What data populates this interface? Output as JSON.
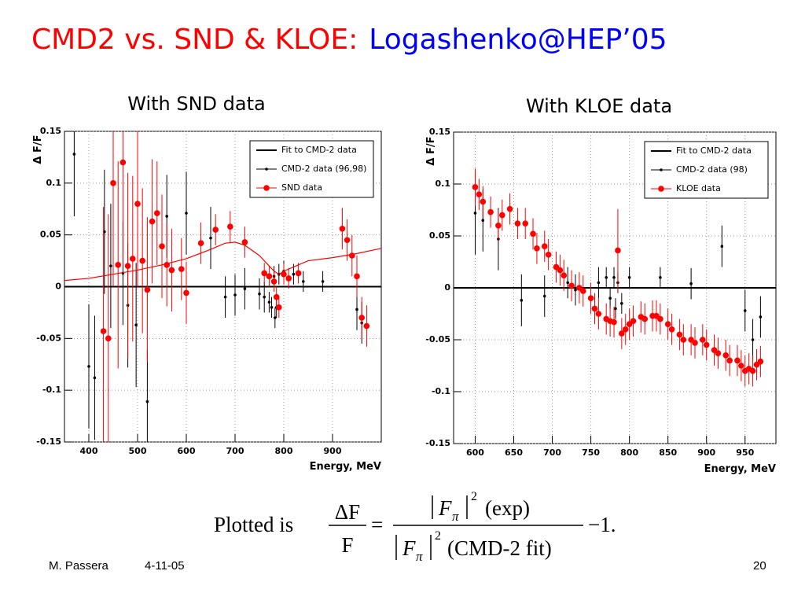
{
  "title": {
    "main": "CMD2 vs. SND & KLOE:",
    "source": "Logashenko@HEP’05"
  },
  "formula": {
    "lead": "Plotted is",
    "delta_f": "ΔF",
    "f": "F",
    "equals": "=",
    "pi": "π",
    "power": "2",
    "num_tail": "(exp)",
    "den_tail": "(CMD-2 fit)",
    "tail": "−1."
  },
  "footer": {
    "author": "M. Passera",
    "date": "4-11-05",
    "page": "20"
  },
  "chart_data": [
    {
      "type": "scatter",
      "subtitle": "With SND data",
      "xlabel": "Energy, MeV",
      "ylabel": "Δ F/F",
      "xlim": [
        350,
        1000
      ],
      "xticks": [
        400,
        500,
        600,
        700,
        800,
        900
      ],
      "ylim": [
        -0.15,
        0.15
      ],
      "yticks": [
        0.15,
        0.1,
        0.05,
        0,
        -0.05,
        -0.1,
        -0.15
      ],
      "grid": true,
      "legend": "upper right",
      "series": [
        {
          "name": "Fit to CMD-2 data",
          "style": "line",
          "color": "#000000",
          "x": [
            350,
            1000
          ],
          "values": [
            0,
            0
          ]
        },
        {
          "name": "CMD-2 data (96,98)",
          "style": "markers",
          "marker": "dot",
          "color": "#000000",
          "x": [
            370,
            400,
            412,
            432,
            445,
            470,
            480,
            497,
            520,
            560,
            600,
            650,
            680,
            700,
            720,
            750,
            760,
            770,
            775,
            780,
            782,
            785,
            790,
            800,
            820,
            840,
            880,
            950,
            960
          ],
          "values": [
            0.128,
            -0.077,
            -0.088,
            0.053,
            0.02,
            0.013,
            -0.018,
            -0.037,
            -0.111,
            0.068,
            0.071,
            0.047,
            -0.01,
            -0.008,
            -0.002,
            -0.007,
            -0.01,
            -0.015,
            -0.02,
            0.01,
            -0.03,
            -0.02,
            0.012,
            0.015,
            0.012,
            0.005,
            0.005,
            -0.022,
            -0.035
          ],
          "errors": [
            0.06,
            0.06,
            0.06,
            0.06,
            0.06,
            0.05,
            0.06,
            0.06,
            0.05,
            0.04,
            0.04,
            0.03,
            0.02,
            0.02,
            0.02,
            0.015,
            0.015,
            0.01,
            0.01,
            0.01,
            0.01,
            0.01,
            0.01,
            0.01,
            0.01,
            0.01,
            0.01,
            0.02,
            0.02
          ]
        },
        {
          "name": "SND data",
          "style": "markers",
          "marker": "circle",
          "color": "#ff0000",
          "x": [
            430,
            440,
            450,
            460,
            470,
            480,
            490,
            500,
            510,
            520,
            530,
            540,
            550,
            560,
            570,
            590,
            600,
            630,
            660,
            690,
            720,
            760,
            770,
            780,
            785,
            790,
            800,
            810,
            830,
            920,
            930,
            940,
            950,
            960,
            970
          ],
          "values": [
            -0.043,
            -0.05,
            0.1,
            0.021,
            0.12,
            0.02,
            0.027,
            0.08,
            0.025,
            -0.003,
            0.063,
            0.071,
            0.039,
            0.021,
            0.016,
            0.017,
            -0.006,
            0.042,
            0.055,
            0.058,
            0.043,
            0.013,
            0.01,
            0.005,
            -0.01,
            -0.02,
            0.012,
            0.008,
            0.013,
            0.056,
            0.045,
            0.03,
            0.01,
            -0.03,
            -0.038
          ],
          "errors": [
            0.12,
            0.12,
            0.1,
            0.1,
            0.1,
            0.09,
            0.08,
            0.08,
            0.07,
            0.07,
            0.06,
            0.05,
            0.05,
            0.04,
            0.04,
            0.03,
            0.03,
            0.02,
            0.015,
            0.015,
            0.015,
            0.01,
            0.01,
            0.01,
            0.01,
            0.01,
            0.01,
            0.01,
            0.01,
            0.02,
            0.02,
            0.02,
            0.02,
            0.02,
            0.02
          ]
        },
        {
          "style": "line",
          "color": "#ff0000",
          "x": [
            350,
            400,
            450,
            500,
            550,
            600,
            650,
            680,
            700,
            720,
            750,
            780,
            790,
            800,
            850,
            900,
            950,
            1000
          ],
          "values": [
            0.006,
            0.008,
            0.012,
            0.016,
            0.021,
            0.027,
            0.036,
            0.042,
            0.043,
            0.04,
            0.03,
            0.015,
            0.012,
            0.015,
            0.025,
            0.028,
            0.032,
            0.037
          ]
        }
      ]
    },
    {
      "type": "scatter",
      "subtitle": "With KLOE data",
      "xlabel": "Energy, MeV",
      "ylabel": "Δ F/F",
      "xlim": [
        572,
        990
      ],
      "xticks": [
        600,
        650,
        700,
        750,
        800,
        850,
        900,
        950
      ],
      "ylim": [
        -0.15,
        0.15
      ],
      "yticks": [
        0.15,
        0.1,
        0.05,
        0,
        -0.05,
        -0.1,
        -0.15
      ],
      "grid": true,
      "legend": "upper right",
      "series": [
        {
          "name": "Fit to CMD-2 data",
          "style": "line",
          "color": "#000000",
          "x": [
            572,
            990
          ],
          "values": [
            0,
            0
          ]
        },
        {
          "name": "CMD-2 data (98)",
          "style": "markers",
          "marker": "dot",
          "color": "#000000",
          "x": [
            600,
            610,
            630,
            660,
            690,
            720,
            730,
            760,
            770,
            775,
            780,
            782,
            785,
            790,
            800,
            840,
            880,
            920,
            950,
            960,
            970
          ],
          "values": [
            0.072,
            0.065,
            0.047,
            -0.012,
            -0.008,
            0.005,
            -0.002,
            0.005,
            0.01,
            -0.01,
            0.01,
            -0.02,
            0.005,
            -0.015,
            0.01,
            0.01,
            0.004,
            0.04,
            -0.022,
            -0.05,
            -0.028
          ],
          "errors": [
            0.04,
            0.03,
            0.03,
            0.025,
            0.02,
            0.015,
            0.015,
            0.015,
            0.01,
            0.01,
            0.01,
            0.01,
            0.01,
            0.01,
            0.01,
            0.01,
            0.015,
            0.02,
            0.02,
            0.02,
            0.02
          ]
        },
        {
          "name": "KLOE data",
          "style": "markers",
          "marker": "circle",
          "color": "#ff0000",
          "x": [
            600,
            605,
            610,
            620,
            630,
            635,
            645,
            655,
            665,
            675,
            680,
            690,
            695,
            705,
            710,
            715,
            725,
            735,
            740,
            750,
            755,
            760,
            770,
            775,
            780,
            785,
            790,
            795,
            800,
            805,
            815,
            820,
            830,
            835,
            840,
            850,
            855,
            865,
            870,
            880,
            885,
            895,
            900,
            910,
            915,
            925,
            930,
            940,
            945,
            950,
            955,
            960,
            965,
            970
          ],
          "values": [
            0.097,
            0.09,
            0.083,
            0.073,
            0.06,
            0.07,
            0.076,
            0.062,
            0.062,
            0.052,
            0.038,
            0.04,
            0.032,
            0.02,
            0.017,
            0.012,
            0.002,
            0,
            -0.003,
            -0.01,
            -0.02,
            -0.025,
            -0.03,
            -0.032,
            -0.033,
            0.036,
            -0.044,
            -0.04,
            -0.035,
            -0.032,
            -0.028,
            -0.03,
            -0.027,
            -0.027,
            -0.03,
            -0.035,
            -0.04,
            -0.045,
            -0.05,
            -0.05,
            -0.053,
            -0.05,
            -0.055,
            -0.06,
            -0.063,
            -0.065,
            -0.07,
            -0.07,
            -0.075,
            -0.08,
            -0.078,
            -0.08,
            -0.074,
            -0.071
          ],
          "errors": [
            0.018,
            0.015,
            0.015,
            0.015,
            0.015,
            0.015,
            0.015,
            0.015,
            0.015,
            0.015,
            0.015,
            0.015,
            0.015,
            0.015,
            0.015,
            0.015,
            0.015,
            0.015,
            0.015,
            0.015,
            0.015,
            0.015,
            0.015,
            0.015,
            0.015,
            0.04,
            0.015,
            0.015,
            0.015,
            0.015,
            0.015,
            0.015,
            0.015,
            0.015,
            0.015,
            0.015,
            0.015,
            0.015,
            0.015,
            0.015,
            0.015,
            0.015,
            0.015,
            0.015,
            0.015,
            0.015,
            0.015,
            0.015,
            0.015,
            0.015,
            0.015,
            0.015,
            0.015,
            0.015
          ]
        }
      ]
    }
  ]
}
